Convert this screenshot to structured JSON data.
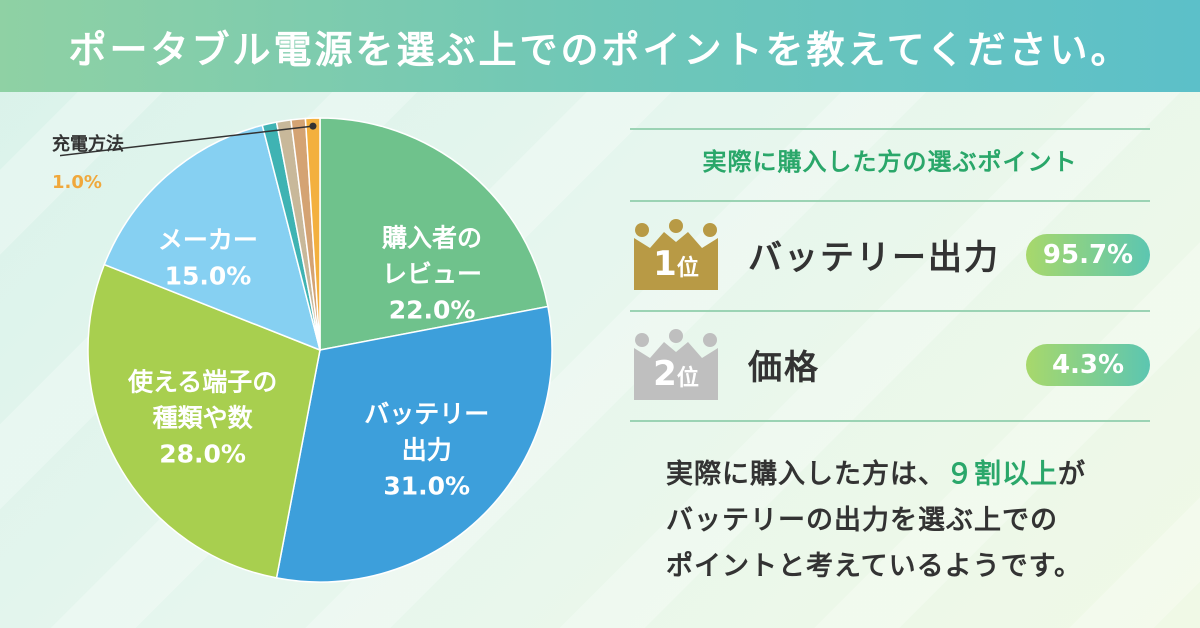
{
  "header": {
    "title": "ポータブル電源を選ぶ上でのポイントを教えてください。"
  },
  "chart_data": {
    "type": "pie",
    "title": "",
    "slices": [
      {
        "label_lines": [
          "購入者の",
          "レビュー"
        ],
        "value": 22.0,
        "pct_text": "22.0%",
        "color": "#6fc28c"
      },
      {
        "label_lines": [
          "バッテリー",
          "出力"
        ],
        "value": 31.0,
        "pct_text": "31.0%",
        "color": "#3d9fdb"
      },
      {
        "label_lines": [
          "使える端子の",
          "種類や数"
        ],
        "value": 28.0,
        "pct_text": "28.0%",
        "color": "#a8cf4f"
      },
      {
        "label_lines": [
          "メーカー"
        ],
        "value": 15.0,
        "pct_text": "15.0%",
        "color": "#86d0f2"
      },
      {
        "label_lines": [],
        "value": 1.0,
        "pct_text": "",
        "color": "#3fb3b3"
      },
      {
        "label_lines": [],
        "value": 1.0,
        "pct_text": "",
        "color": "#c8b89a"
      },
      {
        "label_lines": [],
        "value": 1.0,
        "pct_text": "",
        "color": "#d4a373"
      },
      {
        "label_lines": [
          "充電方法"
        ],
        "value": 1.0,
        "pct_text": "1.0%",
        "color": "#f3b03e"
      }
    ],
    "leader": {
      "label": "充電方法",
      "pct": "1.0%"
    }
  },
  "right": {
    "subtitle": "実際に購入した方の選ぶポイント",
    "ranks": [
      {
        "num": "1",
        "suffix": "位",
        "name": "バッテリー出力",
        "pct": "95.7%",
        "crown_color": "#b89a45"
      },
      {
        "num": "2",
        "suffix": "位",
        "name": "価格",
        "pct": "4.3%",
        "crown_color": "#bfbfbf"
      }
    ]
  },
  "summary": {
    "line1_a": "実際に購入した方は、",
    "line1_hl": "９割以上",
    "line1_b": "が",
    "line2": "バッテリーの出力を選ぶ上での",
    "line3": "ポイントと考えているようです。"
  }
}
